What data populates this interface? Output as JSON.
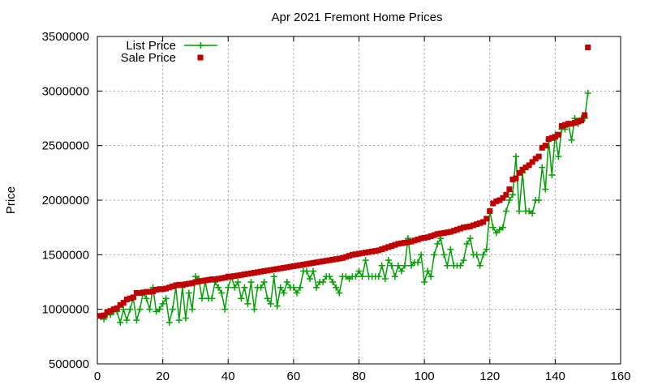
{
  "chart_data": {
    "type": "line",
    "title": "Apr 2021 Fremont Home Prices",
    "xlabel": "",
    "ylabel": "Price",
    "xlim": [
      0,
      160
    ],
    "ylim": [
      500000,
      3500000
    ],
    "xticks": [
      0,
      20,
      40,
      60,
      80,
      100,
      120,
      140,
      160
    ],
    "yticks": [
      500000,
      1000000,
      1500000,
      2000000,
      2500000,
      3000000,
      3500000
    ],
    "grid": true,
    "legend_position": "top-left",
    "series": [
      {
        "name": "List Price",
        "style": "line-with-plus-markers",
        "color": "#00a000",
        "values": [
          [
            1,
            930000
          ],
          [
            2,
            910000
          ],
          [
            3,
            950000
          ],
          [
            4,
            950000
          ],
          [
            5,
            980000
          ],
          [
            6,
            980000
          ],
          [
            7,
            880000
          ],
          [
            8,
            1000000
          ],
          [
            9,
            900000
          ],
          [
            10,
            1000000
          ],
          [
            11,
            1100000
          ],
          [
            12,
            900000
          ],
          [
            13,
            1000000
          ],
          [
            14,
            1150000
          ],
          [
            15,
            1100000
          ],
          [
            16,
            1000000
          ],
          [
            17,
            1200000
          ],
          [
            18,
            980000
          ],
          [
            19,
            1000000
          ],
          [
            20,
            1050000
          ],
          [
            21,
            1100000
          ],
          [
            22,
            880000
          ],
          [
            23,
            1000000
          ],
          [
            24,
            1200000
          ],
          [
            25,
            900000
          ],
          [
            26,
            1200000
          ],
          [
            27,
            920000
          ],
          [
            28,
            1150000
          ],
          [
            29,
            1000000
          ],
          [
            30,
            1300000
          ],
          [
            31,
            1280000
          ],
          [
            32,
            1100000
          ],
          [
            33,
            1250000
          ],
          [
            34,
            1100000
          ],
          [
            35,
            1100000
          ],
          [
            36,
            1250000
          ],
          [
            37,
            1200000
          ],
          [
            38,
            1150000
          ],
          [
            39,
            1000000
          ],
          [
            40,
            1200000
          ],
          [
            41,
            1300000
          ],
          [
            42,
            1200000
          ],
          [
            43,
            1250000
          ],
          [
            44,
            1100000
          ],
          [
            45,
            1200000
          ],
          [
            46,
            1050000
          ],
          [
            47,
            1250000
          ],
          [
            48,
            1000000
          ],
          [
            49,
            1200000
          ],
          [
            50,
            1200000
          ],
          [
            51,
            1250000
          ],
          [
            52,
            1100000
          ],
          [
            53,
            1050000
          ],
          [
            54,
            1300000
          ],
          [
            55,
            1030000
          ],
          [
            56,
            1200000
          ],
          [
            57,
            1150000
          ],
          [
            58,
            1250000
          ],
          [
            59,
            1200000
          ],
          [
            60,
            1200000
          ],
          [
            61,
            1150000
          ],
          [
            62,
            1200000
          ],
          [
            63,
            1350000
          ],
          [
            64,
            1350000
          ],
          [
            65,
            1280000
          ],
          [
            66,
            1350000
          ],
          [
            67,
            1200000
          ],
          [
            68,
            1250000
          ],
          [
            69,
            1250000
          ],
          [
            70,
            1300000
          ],
          [
            71,
            1300000
          ],
          [
            72,
            1250000
          ],
          [
            73,
            1200000
          ],
          [
            74,
            1150000
          ],
          [
            75,
            1300000
          ],
          [
            76,
            1300000
          ],
          [
            77,
            1280000
          ],
          [
            78,
            1300000
          ],
          [
            79,
            1300000
          ],
          [
            80,
            1350000
          ],
          [
            81,
            1300000
          ],
          [
            82,
            1450000
          ],
          [
            83,
            1300000
          ],
          [
            84,
            1300000
          ],
          [
            85,
            1300000
          ],
          [
            86,
            1300000
          ],
          [
            87,
            1400000
          ],
          [
            88,
            1280000
          ],
          [
            89,
            1450000
          ],
          [
            90,
            1400000
          ],
          [
            91,
            1300000
          ],
          [
            92,
            1400000
          ],
          [
            93,
            1350000
          ],
          [
            94,
            1400000
          ],
          [
            95,
            1650000
          ],
          [
            96,
            1400000
          ],
          [
            97,
            1430000
          ],
          [
            98,
            1430000
          ],
          [
            99,
            1500000
          ],
          [
            100,
            1250000
          ],
          [
            101,
            1350000
          ],
          [
            102,
            1300000
          ],
          [
            103,
            1500000
          ],
          [
            104,
            1600000
          ],
          [
            105,
            1650000
          ],
          [
            106,
            1500000
          ],
          [
            107,
            1400000
          ],
          [
            108,
            1550000
          ],
          [
            109,
            1400000
          ],
          [
            110,
            1400000
          ],
          [
            111,
            1400000
          ],
          [
            112,
            1450000
          ],
          [
            113,
            1600000
          ],
          [
            114,
            1650000
          ],
          [
            115,
            1500000
          ],
          [
            116,
            1500000
          ],
          [
            117,
            1400000
          ],
          [
            118,
            1500000
          ],
          [
            119,
            1550000
          ],
          [
            120,
            1900000
          ],
          [
            121,
            1750000
          ],
          [
            122,
            1700000
          ],
          [
            123,
            1730000
          ],
          [
            124,
            1750000
          ],
          [
            125,
            1900000
          ],
          [
            126,
            2000000
          ],
          [
            127,
            2050000
          ],
          [
            128,
            2400000
          ],
          [
            129,
            1900000
          ],
          [
            130,
            2250000
          ],
          [
            131,
            1900000
          ],
          [
            132,
            1900000
          ],
          [
            133,
            1880000
          ],
          [
            134,
            2000000
          ],
          [
            135,
            2000000
          ],
          [
            136,
            2300000
          ],
          [
            137,
            2100000
          ],
          [
            138,
            2550000
          ],
          [
            139,
            2230000
          ],
          [
            140,
            2600000
          ],
          [
            141,
            2400000
          ],
          [
            142,
            2650000
          ],
          [
            143,
            2650000
          ],
          [
            144,
            2700000
          ],
          [
            145,
            2550000
          ],
          [
            146,
            2750000
          ],
          [
            147,
            2700000
          ],
          [
            148,
            2750000
          ],
          [
            149,
            2750000
          ],
          [
            150,
            2980000
          ]
        ]
      },
      {
        "name": "Sale Price",
        "style": "square-markers",
        "color": "#c00000",
        "values": [
          [
            1,
            940000
          ],
          [
            2,
            945000
          ],
          [
            3,
            975000
          ],
          [
            4,
            985000
          ],
          [
            5,
            1000000
          ],
          [
            6,
            1010000
          ],
          [
            7,
            1040000
          ],
          [
            8,
            1060000
          ],
          [
            9,
            1090000
          ],
          [
            10,
            1100000
          ],
          [
            11,
            1110000
          ],
          [
            12,
            1150000
          ],
          [
            13,
            1150000
          ],
          [
            14,
            1155000
          ],
          [
            15,
            1160000
          ],
          [
            16,
            1160000
          ],
          [
            17,
            1165000
          ],
          [
            18,
            1180000
          ],
          [
            19,
            1185000
          ],
          [
            20,
            1185000
          ],
          [
            21,
            1190000
          ],
          [
            22,
            1200000
          ],
          [
            23,
            1210000
          ],
          [
            24,
            1220000
          ],
          [
            25,
            1225000
          ],
          [
            26,
            1225000
          ],
          [
            27,
            1230000
          ],
          [
            28,
            1235000
          ],
          [
            29,
            1240000
          ],
          [
            30,
            1250000
          ],
          [
            31,
            1255000
          ],
          [
            32,
            1260000
          ],
          [
            33,
            1265000
          ],
          [
            34,
            1270000
          ],
          [
            35,
            1275000
          ],
          [
            36,
            1275000
          ],
          [
            37,
            1280000
          ],
          [
            38,
            1285000
          ],
          [
            39,
            1290000
          ],
          [
            40,
            1300000
          ],
          [
            41,
            1300000
          ],
          [
            42,
            1305000
          ],
          [
            43,
            1310000
          ],
          [
            44,
            1315000
          ],
          [
            45,
            1320000
          ],
          [
            46,
            1325000
          ],
          [
            47,
            1330000
          ],
          [
            48,
            1335000
          ],
          [
            49,
            1340000
          ],
          [
            50,
            1345000
          ],
          [
            51,
            1350000
          ],
          [
            52,
            1355000
          ],
          [
            53,
            1360000
          ],
          [
            54,
            1365000
          ],
          [
            55,
            1370000
          ],
          [
            56,
            1375000
          ],
          [
            57,
            1380000
          ],
          [
            58,
            1385000
          ],
          [
            59,
            1390000
          ],
          [
            60,
            1395000
          ],
          [
            61,
            1400000
          ],
          [
            62,
            1405000
          ],
          [
            63,
            1410000
          ],
          [
            64,
            1415000
          ],
          [
            65,
            1420000
          ],
          [
            66,
            1425000
          ],
          [
            67,
            1430000
          ],
          [
            68,
            1435000
          ],
          [
            69,
            1440000
          ],
          [
            70,
            1445000
          ],
          [
            71,
            1450000
          ],
          [
            72,
            1455000
          ],
          [
            73,
            1460000
          ],
          [
            74,
            1465000
          ],
          [
            75,
            1470000
          ],
          [
            76,
            1480000
          ],
          [
            77,
            1490000
          ],
          [
            78,
            1500000
          ],
          [
            79,
            1505000
          ],
          [
            80,
            1510000
          ],
          [
            81,
            1515000
          ],
          [
            82,
            1520000
          ],
          [
            83,
            1525000
          ],
          [
            84,
            1530000
          ],
          [
            85,
            1535000
          ],
          [
            86,
            1540000
          ],
          [
            87,
            1550000
          ],
          [
            88,
            1560000
          ],
          [
            89,
            1570000
          ],
          [
            90,
            1580000
          ],
          [
            91,
            1590000
          ],
          [
            92,
            1600000
          ],
          [
            93,
            1605000
          ],
          [
            94,
            1610000
          ],
          [
            95,
            1615000
          ],
          [
            96,
            1620000
          ],
          [
            97,
            1630000
          ],
          [
            98,
            1640000
          ],
          [
            99,
            1650000
          ],
          [
            100,
            1655000
          ],
          [
            101,
            1660000
          ],
          [
            102,
            1670000
          ],
          [
            103,
            1680000
          ],
          [
            104,
            1690000
          ],
          [
            105,
            1695000
          ],
          [
            106,
            1700000
          ],
          [
            107,
            1705000
          ],
          [
            108,
            1710000
          ],
          [
            109,
            1720000
          ],
          [
            110,
            1730000
          ],
          [
            111,
            1740000
          ],
          [
            112,
            1750000
          ],
          [
            113,
            1755000
          ],
          [
            114,
            1760000
          ],
          [
            115,
            1770000
          ],
          [
            116,
            1780000
          ],
          [
            117,
            1790000
          ],
          [
            118,
            1800000
          ],
          [
            119,
            1830000
          ],
          [
            120,
            1900000
          ],
          [
            121,
            1970000
          ],
          [
            122,
            1990000
          ],
          [
            123,
            2000000
          ],
          [
            124,
            2020000
          ],
          [
            125,
            2050000
          ],
          [
            126,
            2100000
          ],
          [
            127,
            2190000
          ],
          [
            128,
            2200000
          ],
          [
            129,
            2250000
          ],
          [
            130,
            2280000
          ],
          [
            131,
            2300000
          ],
          [
            132,
            2320000
          ],
          [
            133,
            2350000
          ],
          [
            134,
            2380000
          ],
          [
            135,
            2400000
          ],
          [
            136,
            2480000
          ],
          [
            137,
            2500000
          ],
          [
            138,
            2560000
          ],
          [
            139,
            2570000
          ],
          [
            140,
            2580000
          ],
          [
            141,
            2600000
          ],
          [
            142,
            2680000
          ],
          [
            143,
            2690000
          ],
          [
            144,
            2700000
          ],
          [
            145,
            2700000
          ],
          [
            146,
            2710000
          ],
          [
            147,
            2720000
          ],
          [
            148,
            2730000
          ],
          [
            149,
            2780000
          ],
          [
            150,
            3400000
          ]
        ]
      }
    ]
  }
}
